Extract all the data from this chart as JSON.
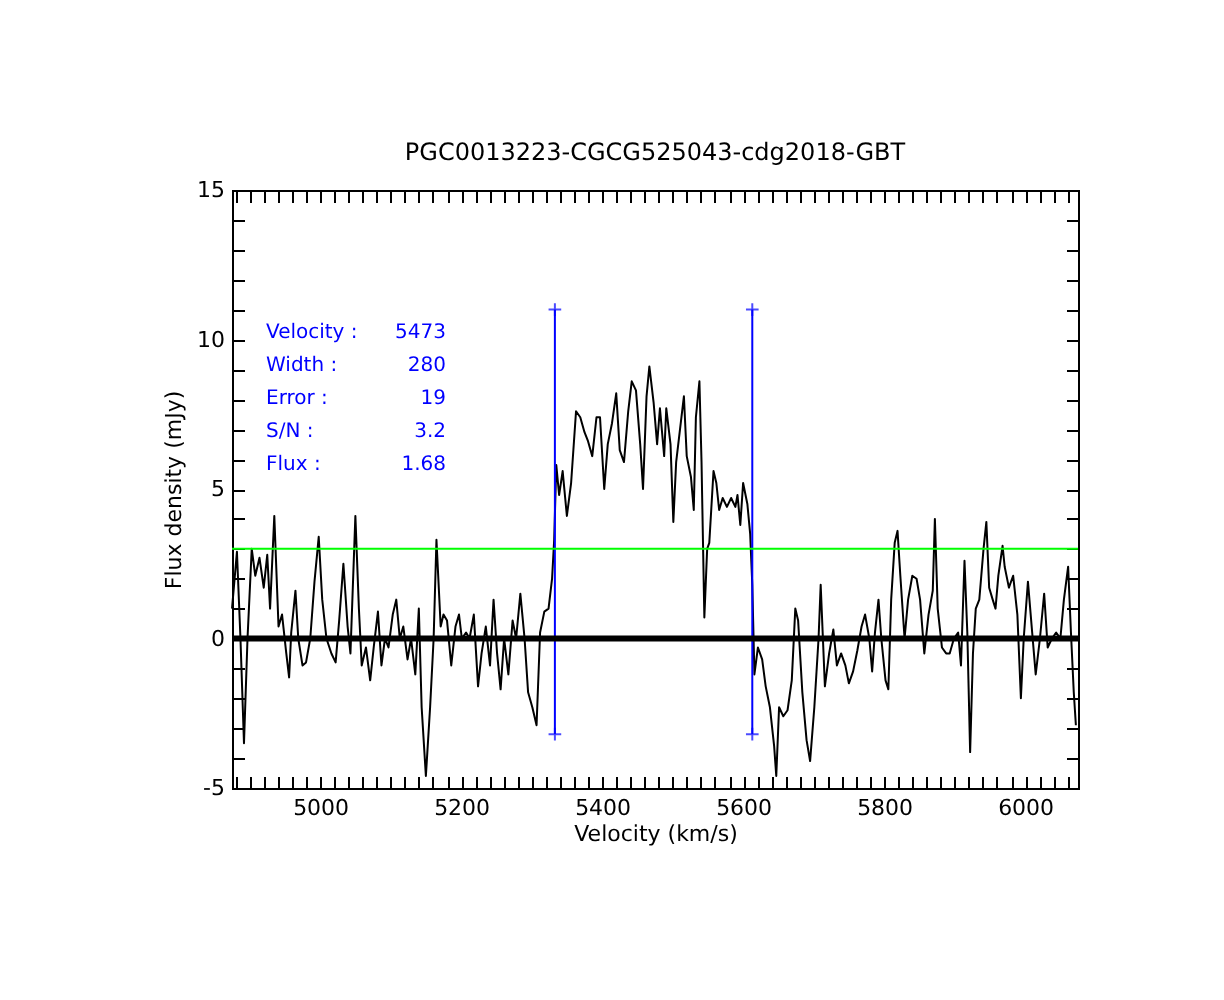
{
  "chart_data": {
    "type": "line",
    "title": "PGC0013223-CGCG525043-cdg2018-GBT",
    "xlabel": "Velocity (km/s)",
    "ylabel": "Flux density (mJy)",
    "xlim": [
      4875,
      6075
    ],
    "ylim": [
      -5,
      15
    ],
    "xticks": [
      {
        "value": 4880,
        "label": null
      },
      {
        "value": 4900,
        "label": null
      },
      {
        "value": 4920,
        "label": null
      },
      {
        "value": 4940,
        "label": null
      },
      {
        "value": 4960,
        "label": null
      },
      {
        "value": 4980,
        "label": null
      },
      5000,
      {
        "value": 5020,
        "label": null
      },
      {
        "value": 5040,
        "label": null
      },
      {
        "value": 5060,
        "label": null
      },
      {
        "value": 5080,
        "label": null
      },
      {
        "value": 5100,
        "label": null
      },
      {
        "value": 5120,
        "label": null
      },
      {
        "value": 5140,
        "label": null
      },
      {
        "value": 5160,
        "label": null
      },
      {
        "value": 5180,
        "label": null
      },
      5200,
      {
        "value": 5220,
        "label": null
      },
      {
        "value": 5240,
        "label": null
      },
      {
        "value": 5260,
        "label": null
      },
      {
        "value": 5280,
        "label": null
      },
      {
        "value": 5300,
        "label": null
      },
      {
        "value": 5320,
        "label": null
      },
      {
        "value": 5340,
        "label": null
      },
      {
        "value": 5360,
        "label": null
      },
      {
        "value": 5380,
        "label": null
      },
      5400,
      {
        "value": 5420,
        "label": null
      },
      {
        "value": 5440,
        "label": null
      },
      {
        "value": 5460,
        "label": null
      },
      {
        "value": 5480,
        "label": null
      },
      {
        "value": 5500,
        "label": null
      },
      {
        "value": 5520,
        "label": null
      },
      {
        "value": 5540,
        "label": null
      },
      {
        "value": 5560,
        "label": null
      },
      {
        "value": 5580,
        "label": null
      },
      5600,
      {
        "value": 5620,
        "label": null
      },
      {
        "value": 5640,
        "label": null
      },
      {
        "value": 5660,
        "label": null
      },
      {
        "value": 5680,
        "label": null
      },
      {
        "value": 5700,
        "label": null
      },
      {
        "value": 5720,
        "label": null
      },
      {
        "value": 5740,
        "label": null
      },
      {
        "value": 5760,
        "label": null
      },
      {
        "value": 5780,
        "label": null
      },
      5800,
      {
        "value": 5820,
        "label": null
      },
      {
        "value": 5840,
        "label": null
      },
      {
        "value": 5860,
        "label": null
      },
      {
        "value": 5880,
        "label": null
      },
      {
        "value": 5900,
        "label": null
      },
      {
        "value": 5920,
        "label": null
      },
      {
        "value": 5940,
        "label": null
      },
      {
        "value": 5960,
        "label": null
      },
      {
        "value": 5980,
        "label": null
      },
      6000,
      {
        "value": 6020,
        "label": null
      },
      {
        "value": 6040,
        "label": null
      },
      {
        "value": 6060,
        "label": null
      }
    ],
    "yticks": [
      -5,
      {
        "value": -4,
        "label": null
      },
      {
        "value": -3,
        "label": null
      },
      {
        "value": -2,
        "label": null
      },
      {
        "value": -1,
        "label": null
      },
      0,
      {
        "value": 1,
        "label": null
      },
      {
        "value": 2,
        "label": null
      },
      {
        "value": 3,
        "label": null
      },
      {
        "value": 4,
        "label": null
      },
      5,
      {
        "value": 6,
        "label": null
      },
      {
        "value": 7,
        "label": null
      },
      {
        "value": 8,
        "label": null
      },
      {
        "value": 9,
        "label": null
      },
      10,
      {
        "value": 11,
        "label": null
      },
      {
        "value": 12,
        "label": null
      },
      {
        "value": 13,
        "label": null
      },
      {
        "value": 14,
        "label": null
      },
      15
    ],
    "series": [
      {
        "color": "#000000",
        "x": [
          4875,
          4882,
          4887,
          4892,
          4897,
          4903,
          4908,
          4914,
          4920,
          4925,
          4929,
          4935,
          4941,
          4946,
          4952,
          4956,
          4959,
          4965,
          4969,
          4975,
          4980,
          4986,
          4992,
          4998,
          5003,
          5009,
          5016,
          5022,
          5027,
          5033,
          5039,
          5043,
          5050,
          5055,
          5059,
          5065,
          5071,
          5076,
          5082,
          5087,
          5092,
          5097,
          5103,
          5108,
          5113,
          5118,
          5124,
          5129,
          5135,
          5140,
          5144,
          5150,
          5156,
          5161,
          5165,
          5171,
          5175,
          5180,
          5186,
          5192,
          5197,
          5201,
          5207,
          5212,
          5218,
          5224,
          5229,
          5235,
          5241,
          5246,
          5251,
          5256,
          5261,
          5267,
          5273,
          5278,
          5284,
          5290,
          5295,
          5301,
          5307,
          5312,
          5318,
          5324,
          5329,
          5332,
          5335,
          5339,
          5344,
          5350,
          5356,
          5363,
          5369,
          5375,
          5380,
          5386,
          5392,
          5397,
          5403,
          5408,
          5414,
          5420,
          5425,
          5431,
          5437,
          5442,
          5448,
          5454,
          5458,
          5463,
          5467,
          5473,
          5478,
          5482,
          5488,
          5491,
          5497,
          5501,
          5505,
          5510,
          5516,
          5520,
          5526,
          5530,
          5533,
          5538,
          5541,
          5545,
          5549,
          5552,
          5558,
          5562,
          5566,
          5571,
          5577,
          5583,
          5589,
          5592,
          5596,
          5600,
          5606,
          5610,
          5613,
          5616,
          5621,
          5627,
          5632,
          5638,
          5644,
          5647,
          5651,
          5657,
          5663,
          5669,
          5674,
          5678,
          5684,
          5690,
          5695,
          5701,
          5707,
          5710,
          5716,
          5722,
          5728,
          5733,
          5739,
          5745,
          5750,
          5756,
          5762,
          5768,
          5773,
          5779,
          5783,
          5787,
          5792,
          5796,
          5802,
          5806,
          5810,
          5815,
          5819,
          5823,
          5829,
          5834,
          5840,
          5846,
          5851,
          5857,
          5863,
          5869,
          5872,
          5876,
          5882,
          5888,
          5893,
          5899,
          5905,
          5909,
          5914,
          5918,
          5922,
          5926,
          5930,
          5935,
          5941,
          5945,
          5949,
          5954,
          5958,
          5962,
          5968,
          5971,
          5977,
          5983,
          5989,
          5994,
          5998,
          6004,
          6010,
          6015,
          6021,
          6027,
          6032,
          6038,
          6044,
          6050,
          6055,
          6061,
          6065,
          6069,
          6072
        ],
        "values": [
          1.0,
          2.9,
          0,
          -3.5,
          0,
          3.0,
          2.1,
          2.7,
          1.7,
          2.8,
          1.0,
          4.1,
          0.4,
          0.8,
          -0.5,
          -1.3,
          0.2,
          1.6,
          0,
          -0.9,
          -0.8,
          0,
          1.9,
          3.4,
          1.3,
          0,
          -0.5,
          -0.8,
          0.6,
          2.5,
          0.4,
          -0.5,
          4.1,
          1.0,
          -0.9,
          -0.3,
          -1.4,
          -0.3,
          0.9,
          -0.9,
          0,
          -0.3,
          0.8,
          1.3,
          0,
          0.4,
          -0.7,
          0,
          -1.2,
          1.0,
          -2.3,
          -4.6,
          -2.3,
          0,
          3.3,
          0.4,
          0.8,
          0.6,
          -0.9,
          0.4,
          0.8,
          0,
          0.2,
          0,
          0.8,
          -1.6,
          -0.5,
          0.4,
          -0.9,
          1.3,
          -0.5,
          -1.7,
          0,
          -1.2,
          0.6,
          0,
          1.5,
          0,
          -1.8,
          -2.3,
          -2.9,
          0.2,
          0.9,
          1.0,
          2.0,
          3.3,
          5.8,
          4.8,
          5.6,
          4.1,
          5.2,
          7.6,
          7.4,
          6.9,
          6.6,
          6.1,
          7.4,
          7.4,
          5.0,
          6.5,
          7.2,
          8.2,
          6.3,
          5.9,
          7.6,
          8.6,
          8.3,
          6.5,
          5.0,
          8.1,
          9.1,
          7.9,
          6.5,
          7.7,
          6.1,
          7.7,
          6.5,
          3.9,
          5.9,
          6.9,
          8.1,
          6.1,
          5.4,
          4.3,
          7.4,
          8.6,
          5.9,
          0.7,
          3.0,
          3.2,
          5.6,
          5.2,
          4.3,
          4.7,
          4.4,
          4.7,
          4.4,
          4.8,
          3.8,
          5.2,
          4.5,
          3.5,
          1.8,
          -1.2,
          -0.3,
          -0.7,
          -1.6,
          -2.3,
          -3.6,
          -4.6,
          -2.3,
          -2.6,
          -2.4,
          -1.4,
          1.0,
          0.6,
          -1.8,
          -3.4,
          -4.1,
          -2.3,
          0,
          1.8,
          -1.6,
          -0.5,
          0.3,
          -0.9,
          -0.5,
          -0.9,
          -1.5,
          -1.1,
          -0.4,
          0.4,
          0.8,
          0,
          -1.1,
          0.2,
          1.3,
          0,
          -1.4,
          -1.7,
          1.3,
          3.2,
          3.6,
          2.1,
          0,
          1.3,
          2.1,
          2.0,
          1.3,
          -0.5,
          0.8,
          1.6,
          4.0,
          1.0,
          -0.3,
          -0.5,
          -0.5,
          0,
          0.2,
          -0.9,
          2.6,
          0.2,
          -3.8,
          -0.5,
          1.0,
          1.3,
          3.0,
          3.9,
          1.7,
          1.3,
          1.0,
          2.1,
          3.1,
          2.4,
          1.7,
          2.1,
          0.8,
          -2.0,
          0,
          1.9,
          0.2,
          -1.2,
          0,
          1.5,
          -0.3,
          0,
          0.2,
          0,
          1.3,
          2.4,
          0.2,
          -1.8,
          -2.9
        ]
      },
      {
        "color": "#0000ff",
        "marker": "cross",
        "x": [
          5333,
          5333
        ],
        "values": [
          -3.2,
          11
        ]
      },
      {
        "color": "#0000ff",
        "marker": "cross",
        "x": [
          5613,
          5613
        ],
        "values": [
          -3.2,
          11
        ]
      }
    ],
    "ref_lines": [
      {
        "axis": "y",
        "value": 0,
        "color": "#000000"
      },
      {
        "axis": "y",
        "value": 3,
        "color": "#00ff00"
      }
    ],
    "annotations": [
      "Velocity : 5473",
      "Width : 280",
      "Error : 19",
      "S/N : 3.2",
      "Flux : 1.68"
    ]
  }
}
